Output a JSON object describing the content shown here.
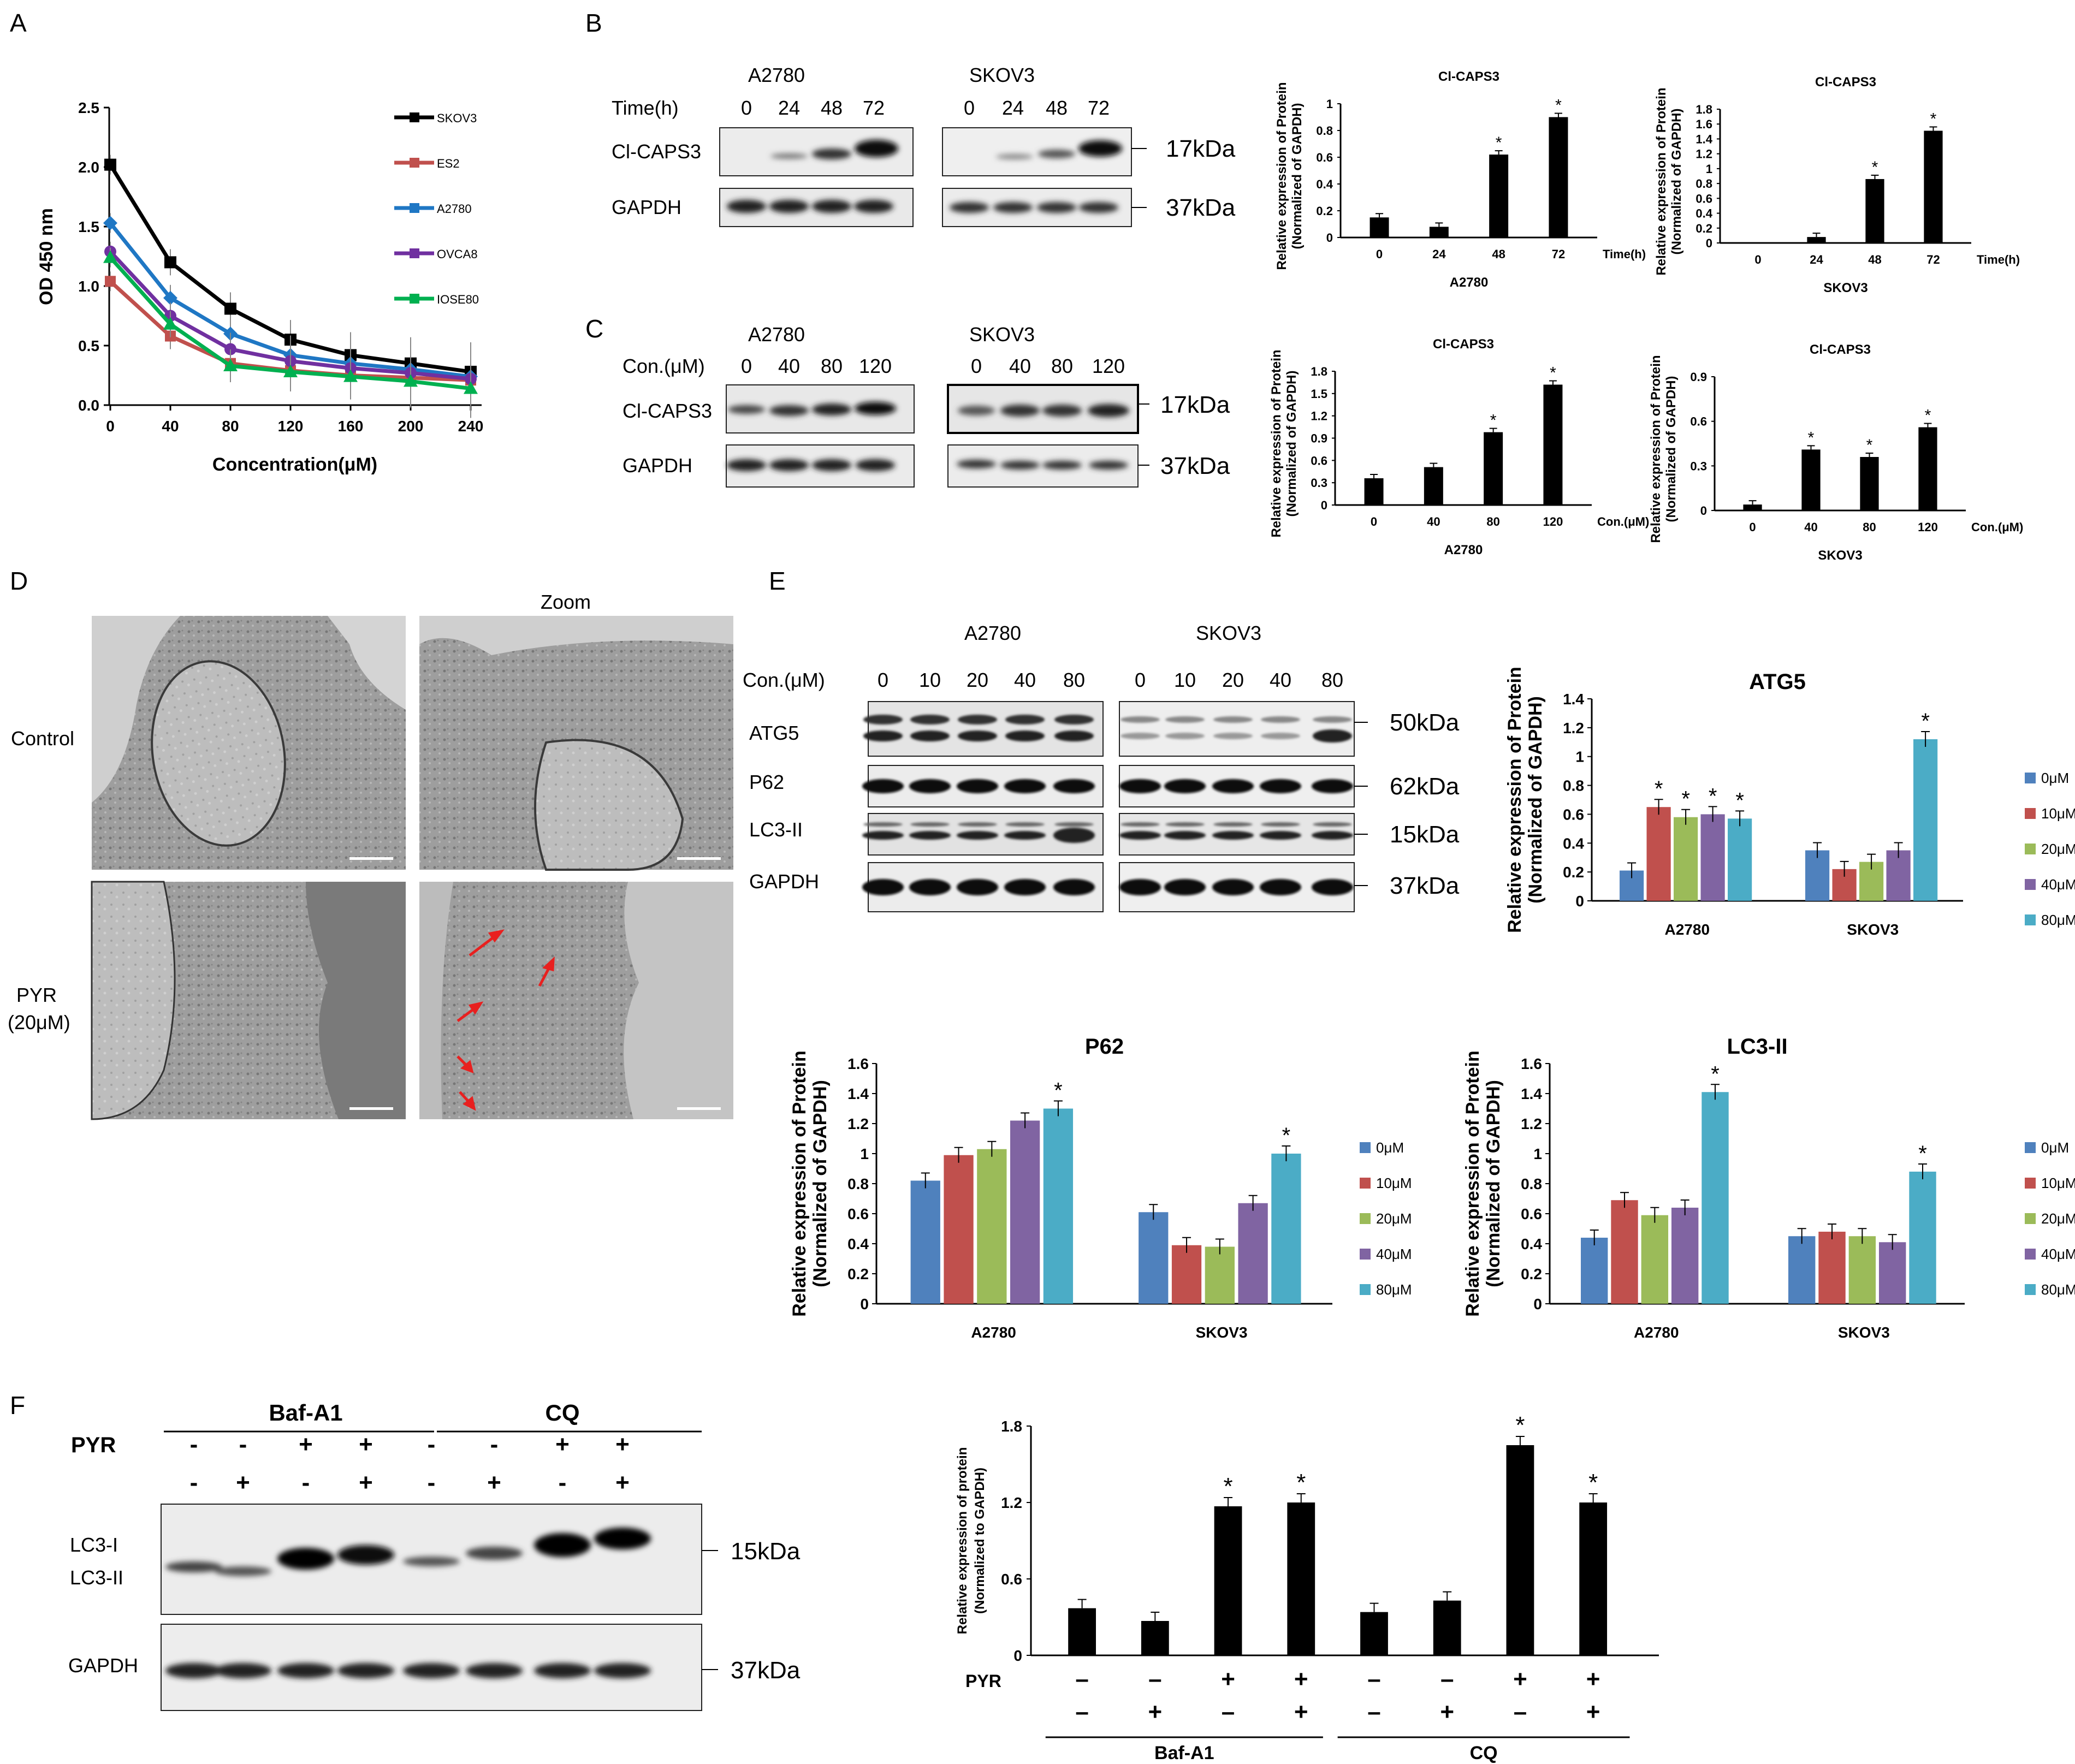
{
  "panels": {
    "A": "A",
    "B": "B",
    "C": "C",
    "D": "D",
    "E": "E",
    "F": "F"
  },
  "blot_B": {
    "a2780_title": "A2780",
    "skov3_title": "SKOV3",
    "time_label": "Time(h)",
    "time_values": [
      "0",
      "24",
      "48",
      "72"
    ],
    "row1": "Cl-CAPS3",
    "row2": "GAPDH",
    "kda1": "17kDa",
    "kda2": "37kDa"
  },
  "blot_C": {
    "a2780_title": "A2780",
    "skov3_title": "SKOV3",
    "con_label": "Con.(μM)",
    "con_values": [
      "0",
      "40",
      "80",
      "120"
    ],
    "row1": "Cl-CAPS3",
    "row2": "GAPDH",
    "kda1": "17kDa",
    "kda2": "37kDa"
  },
  "panel_D": {
    "zoom_label": "Zoom",
    "control_label": "Control",
    "pyr_label1": "PYR",
    "pyr_label2": "(20μM)"
  },
  "blot_E": {
    "a2780_title": "A2780",
    "skov3_title": "SKOV3",
    "con_label": "Con.(μM)",
    "con_values": [
      "0",
      "10",
      "20",
      "40",
      "80"
    ],
    "rows": [
      "ATG5",
      "P62",
      "LC3-II",
      "GAPDH"
    ],
    "kdas": [
      "50kDa",
      "62kDa",
      "15kDa",
      "37kDa"
    ]
  },
  "blot_F": {
    "group1": "Baf-A1",
    "group2": "CQ",
    "pyr_label": "PYR",
    "row_pyr": [
      "-",
      "-",
      "+",
      "+",
      "-",
      "-",
      "+",
      "+"
    ],
    "row_inh": [
      "-",
      "+",
      "-",
      "+",
      "-",
      "+",
      "-",
      "+"
    ],
    "lc3_i": "LC3-I",
    "lc3_ii": "LC3-II",
    "gapdh": "GAPDH",
    "kda1": "15kDa",
    "kda2": "37kDa"
  },
  "colors": {
    "s0": "#4f81bd",
    "s1": "#c0504d",
    "s2": "#9bbb59",
    "s3": "#8064a2",
    "s4": "#4bacc6",
    "skov3": "#000000",
    "es2": "#c0504d",
    "a2780": "#1f77c4",
    "ovca8": "#7030a0",
    "iose80": "#00b050"
  },
  "chart_data": [
    {
      "id": "A",
      "type": "line",
      "x": [
        0,
        40,
        80,
        120,
        160,
        200,
        240
      ],
      "xlabel": "Concentration(μM)",
      "ylabel": "OD 450 nm",
      "ylim": [
        0,
        2.5
      ],
      "yticks": [
        "0.0",
        "0.5",
        "1.0",
        "1.5",
        "2.0",
        "2.5"
      ],
      "xticks": [
        "0",
        "40",
        "80",
        "120",
        "160",
        "200",
        "240"
      ],
      "series": [
        {
          "name": "SKOV3",
          "values": [
            2.02,
            1.2,
            0.81,
            0.55,
            0.42,
            0.35,
            0.28
          ]
        },
        {
          "name": "ES2",
          "values": [
            1.04,
            0.58,
            0.35,
            0.29,
            0.25,
            0.23,
            0.21
          ]
        },
        {
          "name": "A2780",
          "values": [
            1.53,
            0.9,
            0.6,
            0.42,
            0.35,
            0.3,
            0.24
          ]
        },
        {
          "name": "OVCA8",
          "values": [
            1.29,
            0.75,
            0.47,
            0.37,
            0.31,
            0.27,
            0.22
          ]
        },
        {
          "name": "IOSE80",
          "values": [
            1.24,
            0.68,
            0.33,
            0.28,
            0.24,
            0.2,
            0.14
          ]
        }
      ]
    },
    {
      "id": "B1",
      "type": "bar",
      "title": "Cl-CAPS3",
      "categories": [
        "0",
        "24",
        "48",
        "72"
      ],
      "values": [
        0.15,
        0.08,
        0.62,
        0.9
      ],
      "sig": [
        "",
        "",
        "*",
        "*"
      ],
      "xunit": "Time(h)",
      "xlabel": "A2780",
      "ylabel1": "Relative expression of Protein",
      "ylabel2": "(Normalized of GAPDH)",
      "ylim": [
        0,
        1
      ],
      "yticks": [
        "0",
        "0.2",
        "0.4",
        "0.6",
        "0.8",
        "1"
      ]
    },
    {
      "id": "B2",
      "type": "bar",
      "title": "Cl-CAPS3",
      "categories": [
        "0",
        "24",
        "48",
        "72"
      ],
      "values": [
        0,
        0.08,
        0.86,
        1.51
      ],
      "sig": [
        "",
        "",
        "*",
        "*"
      ],
      "xunit": "Time(h)",
      "xlabel": "SKOV3",
      "ylabel1": "Relative expression of Protein",
      "ylabel2": "(Normalized of GAPDH)",
      "ylim": [
        0,
        1.8
      ],
      "yticks": [
        "0",
        "0.2",
        "0.4",
        "0.6",
        "0.8",
        "1",
        "1.2",
        "1.4",
        "1.6",
        "1.8"
      ]
    },
    {
      "id": "C1",
      "type": "bar",
      "title": "Cl-CAPS3",
      "categories": [
        "0",
        "40",
        "80",
        "120"
      ],
      "values": [
        0.36,
        0.51,
        0.98,
        1.62
      ],
      "sig": [
        "",
        "",
        "*",
        "*"
      ],
      "xunit": "Con.(μM)",
      "xlabel": "A2780",
      "ylabel1": "Relative expression of Protein",
      "ylabel2": "(Normalized of GAPDH)",
      "ylim": [
        0,
        1.8
      ],
      "yticks": [
        "0",
        "0.3",
        "0.6",
        "0.9",
        "1.2",
        "1.5",
        "1.8"
      ]
    },
    {
      "id": "C2",
      "type": "bar",
      "title": "Cl-CAPS3",
      "categories": [
        "0",
        "40",
        "80",
        "120"
      ],
      "values": [
        0.04,
        0.41,
        0.36,
        0.56
      ],
      "sig": [
        "",
        "*",
        "*",
        "*"
      ],
      "xunit": "Con.(μM)",
      "xlabel": "SKOV3",
      "ylabel1": "Relative expression of Protein",
      "ylabel2": "(Normalized of GAPDH)",
      "ylim": [
        0,
        0.9
      ],
      "yticks": [
        "0",
        "0.3",
        "0.6",
        "0.9"
      ]
    },
    {
      "id": "E1",
      "type": "bar",
      "title": "ATG5",
      "categories": [
        "A2780",
        "SKOV3"
      ],
      "series": [
        {
          "name": "0μM",
          "values": [
            0.21,
            0.35
          ]
        },
        {
          "name": "10μM",
          "values": [
            0.65,
            0.22
          ]
        },
        {
          "name": "20μM",
          "values": [
            0.58,
            0.27
          ]
        },
        {
          "name": "40μM",
          "values": [
            0.6,
            0.35
          ]
        },
        {
          "name": "80μM",
          "values": [
            0.57,
            1.12
          ]
        }
      ],
      "sig": [
        [
          "",
          "*",
          "*",
          "*",
          "*"
        ],
        [
          "",
          "",
          "",
          "",
          "*"
        ]
      ],
      "ylabel1": "Relative expression of Protein",
      "ylabel2": "(Normalized of GAPDH)",
      "ylim": [
        0,
        1.4
      ],
      "yticks": [
        "0",
        "0.2",
        "0.4",
        "0.6",
        "0.8",
        "1",
        "1.2",
        "1.4"
      ]
    },
    {
      "id": "E2",
      "type": "bar",
      "title": "P62",
      "categories": [
        "A2780",
        "SKOV3"
      ],
      "series": [
        {
          "name": "0μM",
          "values": [
            0.82,
            0.61
          ]
        },
        {
          "name": "10μM",
          "values": [
            0.99,
            0.39
          ]
        },
        {
          "name": "20μM",
          "values": [
            1.03,
            0.38
          ]
        },
        {
          "name": "40μM",
          "values": [
            1.22,
            0.67
          ]
        },
        {
          "name": "80μM",
          "values": [
            1.3,
            1.0
          ]
        }
      ],
      "sig": [
        [
          "",
          "",
          "",
          "",
          "*"
        ],
        [
          "",
          "",
          "",
          "",
          "*"
        ]
      ],
      "ylabel1": "Relative expression of Protein",
      "ylabel2": "(Normalized of GAPDH)",
      "ylim": [
        0,
        1.6
      ],
      "yticks": [
        "0",
        "0.2",
        "0.4",
        "0.6",
        "0.8",
        "1",
        "1.2",
        "1.4",
        "1.6"
      ]
    },
    {
      "id": "E3",
      "type": "bar",
      "title": "LC3-II",
      "categories": [
        "A2780",
        "SKOV3"
      ],
      "series": [
        {
          "name": "0μM",
          "values": [
            0.44,
            0.45
          ]
        },
        {
          "name": "10μM",
          "values": [
            0.69,
            0.48
          ]
        },
        {
          "name": "20μM",
          "values": [
            0.59,
            0.45
          ]
        },
        {
          "name": "40μM",
          "values": [
            0.64,
            0.41
          ]
        },
        {
          "name": "80μM",
          "values": [
            1.41,
            0.88
          ]
        }
      ],
      "sig": [
        [
          "",
          "",
          "",
          "",
          "*"
        ],
        [
          "",
          "",
          "",
          "",
          "*"
        ]
      ],
      "ylabel1": "Relative expression of Protein",
      "ylabel2": "(Normalized of GAPDH)",
      "ylim": [
        0,
        1.6
      ],
      "yticks": [
        "0",
        "0.2",
        "0.4",
        "0.6",
        "0.8",
        "1",
        "1.2",
        "1.4",
        "1.6"
      ]
    },
    {
      "id": "F",
      "type": "bar",
      "values": [
        0.37,
        0.27,
        1.17,
        1.2,
        0.34,
        0.43,
        1.65,
        1.2
      ],
      "sig": [
        "",
        "",
        "*",
        "*",
        "",
        "",
        "*",
        "*"
      ],
      "row_pyr": [
        "–",
        "–",
        "+",
        "+",
        "–",
        "–",
        "+",
        "+"
      ],
      "row_inh": [
        "–",
        "+",
        "–",
        "+",
        "–",
        "+",
        "–",
        "+"
      ],
      "pyr_label": "PYR",
      "group1": "Baf-A1",
      "group2": "CQ",
      "ylabel1": "Relative  expression of protein",
      "ylabel2": "(Normalized to GAPDH)",
      "ylim": [
        0,
        1.8
      ],
      "yticks": [
        "0",
        "0.6",
        "1.2",
        "1.8"
      ]
    }
  ]
}
